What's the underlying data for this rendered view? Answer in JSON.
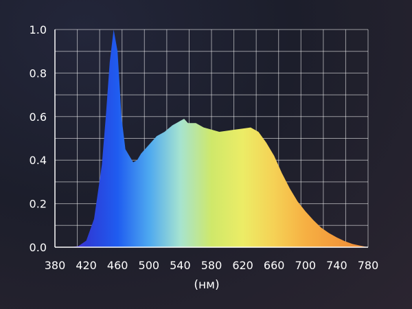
{
  "chart_data": {
    "type": "area",
    "xlabel": "(нм)",
    "ylabel": "",
    "xlim": [
      380,
      780
    ],
    "ylim": [
      0,
      1.0
    ],
    "grid": true,
    "x_ticks": [
      "380",
      "420",
      "460",
      "500",
      "540",
      "580",
      "620",
      "660",
      "700",
      "740",
      "780"
    ],
    "y_ticks": [
      "0.0",
      "0.2",
      "0.4",
      "0.6",
      "0.8",
      "1.0"
    ],
    "series": [
      {
        "x": [
          380,
          400,
          410,
          420,
          430,
          440,
          445,
          450,
          455,
          460,
          465,
          470,
          475,
          480,
          485,
          490,
          500,
          510,
          520,
          530,
          540,
          545,
          550,
          560,
          570,
          580,
          590,
          600,
          610,
          620,
          630,
          640,
          650,
          660,
          670,
          680,
          690,
          700,
          710,
          720,
          730,
          740,
          750,
          760,
          770,
          780
        ],
        "y": [
          0.0,
          0.0,
          0.005,
          0.03,
          0.13,
          0.38,
          0.6,
          0.85,
          1.0,
          0.9,
          0.6,
          0.45,
          0.42,
          0.39,
          0.4,
          0.43,
          0.47,
          0.51,
          0.53,
          0.56,
          0.58,
          0.59,
          0.57,
          0.57,
          0.55,
          0.54,
          0.53,
          0.535,
          0.54,
          0.545,
          0.55,
          0.53,
          0.48,
          0.42,
          0.34,
          0.27,
          0.21,
          0.165,
          0.125,
          0.09,
          0.065,
          0.045,
          0.028,
          0.015,
          0.007,
          0.0
        ]
      }
    ]
  },
  "spectrum_colors": [
    "#8a2be2",
    "#2e3bd6",
    "#1f5cf0",
    "#4da8f0",
    "#a6e3d0",
    "#cfe86a",
    "#ecec66",
    "#f5d155",
    "#f6b043",
    "#f39a3b",
    "#ee8a35"
  ],
  "colors": {
    "grid": "#ffffff",
    "axis": "#ffffff",
    "text": "#ffffff"
  }
}
